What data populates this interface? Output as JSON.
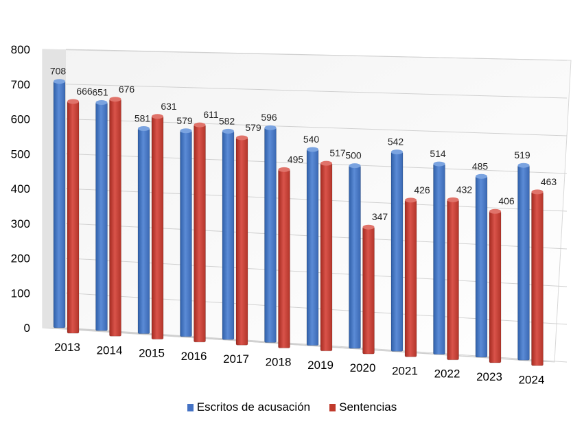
{
  "chart_data": {
    "type": "bar",
    "categories": [
      "2013",
      "2014",
      "2015",
      "2016",
      "2017",
      "2018",
      "2019",
      "2020",
      "2021",
      "2022",
      "2023",
      "2024"
    ],
    "series": [
      {
        "name": "Escritos de acusación",
        "color": "#4472C4",
        "values": [
          708,
          651,
          581,
          579,
          582,
          596,
          540,
          500,
          542,
          514,
          485,
          519
        ]
      },
      {
        "name": "Sentencias",
        "color": "#C0392B",
        "values": [
          666,
          676,
          631,
          611,
          579,
          495,
          517,
          347,
          426,
          432,
          406,
          463
        ]
      }
    ],
    "ylim": [
      0,
      800
    ],
    "yticks": [
      0,
      100,
      200,
      300,
      400,
      500,
      600,
      700,
      800
    ],
    "grid": true,
    "legend_position": "bottom",
    "title": "",
    "xlabel": "",
    "ylabel": ""
  }
}
